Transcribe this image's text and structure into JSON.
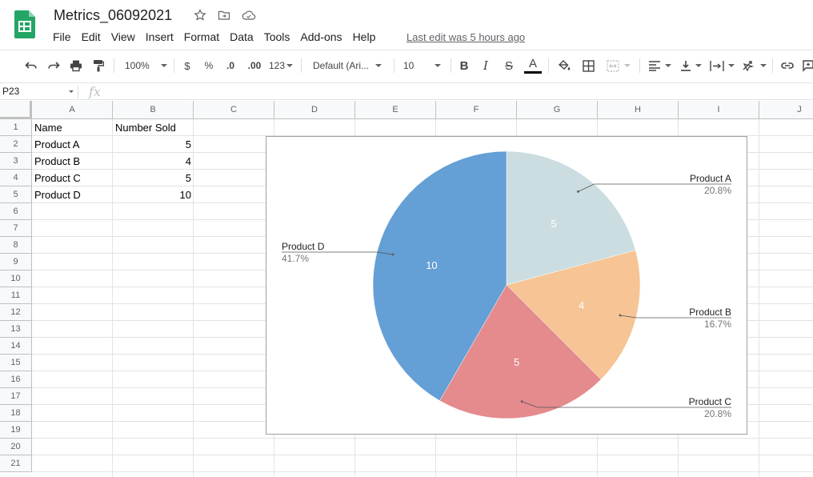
{
  "doc": {
    "title": "Metrics_06092021",
    "last_edit": "Last edit was 5 hours ago"
  },
  "menu": [
    "File",
    "Edit",
    "View",
    "Insert",
    "Format",
    "Data",
    "Tools",
    "Add-ons",
    "Help"
  ],
  "toolbar": {
    "zoom": "100%",
    "currency": "$",
    "percent": "%",
    "decrease_decimal": ".0",
    "increase_decimal": ".00",
    "more_formats": "123",
    "font": "Default (Ari...",
    "font_size": "10",
    "bold": "B",
    "italic": "I",
    "strikethrough": "S",
    "text_color_label": "A",
    "text_color": "#000000"
  },
  "formula_bar": {
    "cell_ref": "P23",
    "fx": "fx",
    "value": ""
  },
  "grid": {
    "columns": [
      "A",
      "B",
      "C",
      "D",
      "E",
      "F",
      "G",
      "H",
      "I",
      "J"
    ],
    "rows": [
      "1",
      "2",
      "3",
      "4",
      "5",
      "6",
      "7",
      "8",
      "9",
      "10",
      "11",
      "12",
      "13",
      "14",
      "15",
      "16",
      "17",
      "18",
      "19",
      "20",
      "21"
    ],
    "header": {
      "A": "Name",
      "B": "Number Sold"
    },
    "data": [
      {
        "name": "Product A",
        "sold": "5"
      },
      {
        "name": "Product B",
        "sold": "4"
      },
      {
        "name": "Product C",
        "sold": "5"
      },
      {
        "name": "Product D",
        "sold": "10"
      }
    ]
  },
  "chart_data": {
    "type": "pie",
    "title": "",
    "slices": [
      {
        "label": "Product A",
        "value": 5,
        "percent": "20.8%",
        "color": "#cbdde1"
      },
      {
        "label": "Product B",
        "value": 4,
        "percent": "16.7%",
        "color": "#f6c495"
      },
      {
        "label": "Product C",
        "value": 5,
        "percent": "20.8%",
        "color": "#e58a8d"
      },
      {
        "label": "Product D",
        "value": 10,
        "percent": "41.7%",
        "color": "#649fd5"
      }
    ]
  },
  "colors": {
    "brand_green": "#0f9d58",
    "grid_line": "#e2e3e3",
    "header_bg": "#f8f9fa"
  }
}
